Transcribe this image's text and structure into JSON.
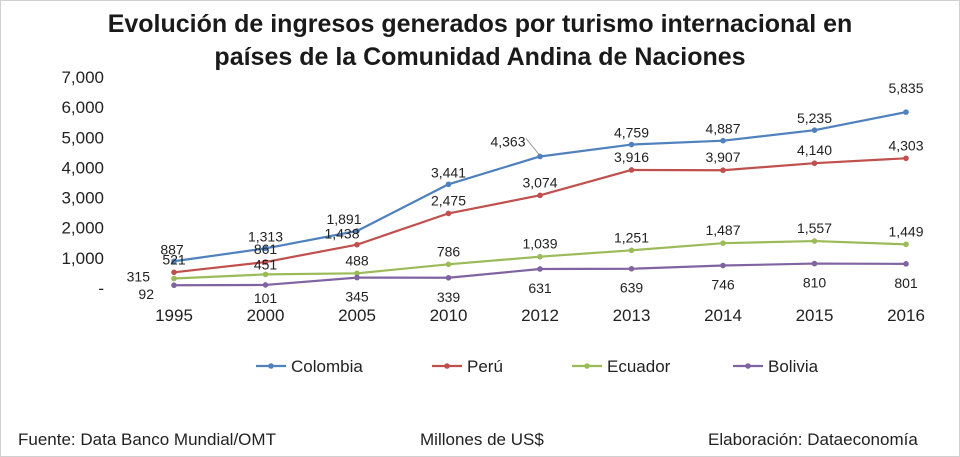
{
  "chart_data": {
    "type": "line",
    "title_line1": "Evolución de ingresos generados por turismo internacional en",
    "title_line2": "países de la Comunidad Andina de Naciones",
    "categories": [
      "1995",
      "2000",
      "2005",
      "2010",
      "2012",
      "2013",
      "2014",
      "2015",
      "2016"
    ],
    "y_ticks": [
      "-",
      "1,000",
      "2,000",
      "3,000",
      "4,000",
      "5,000",
      "6,000",
      "7,000"
    ],
    "ylim": [
      0,
      7000
    ],
    "grid": false,
    "legend_position": "bottom",
    "series": [
      {
        "name": "Colombia",
        "color": "#4f81bd",
        "values": [
          887,
          1313,
          1891,
          3441,
          4363,
          4759,
          4887,
          5235,
          5835
        ],
        "labels": [
          "887",
          "1,313",
          "1,891",
          "3,441",
          "4,363",
          "4,759",
          "4,887",
          "5,235",
          "5,835"
        ]
      },
      {
        "name": "Perú",
        "color": "#c0504d",
        "values": [
          521,
          861,
          1438,
          2475,
          3074,
          3916,
          3907,
          4140,
          4303
        ],
        "labels": [
          "521",
          "861",
          "1,438",
          "2,475",
          "3,074",
          "3,916",
          "3,907",
          "4,140",
          "4,303"
        ]
      },
      {
        "name": "Ecuador",
        "color": "#9bbb59",
        "values": [
          315,
          451,
          488,
          786,
          1039,
          1251,
          1487,
          1557,
          1449
        ],
        "labels": [
          "315",
          "451",
          "488",
          "786",
          "1,039",
          "1,251",
          "1,487",
          "1,557",
          "1,449"
        ]
      },
      {
        "name": "Bolivia",
        "color": "#8064a2",
        "values": [
          92,
          101,
          345,
          339,
          631,
          639,
          746,
          810,
          801
        ],
        "labels": [
          "92",
          "101",
          "345",
          "339",
          "631",
          "639",
          "746",
          "810",
          "801"
        ]
      }
    ]
  },
  "footer": {
    "source": "Fuente: Data Banco Mundial/OMT",
    "units": "Millones de US$",
    "credit": "Elaboración: Dataeconomía"
  }
}
